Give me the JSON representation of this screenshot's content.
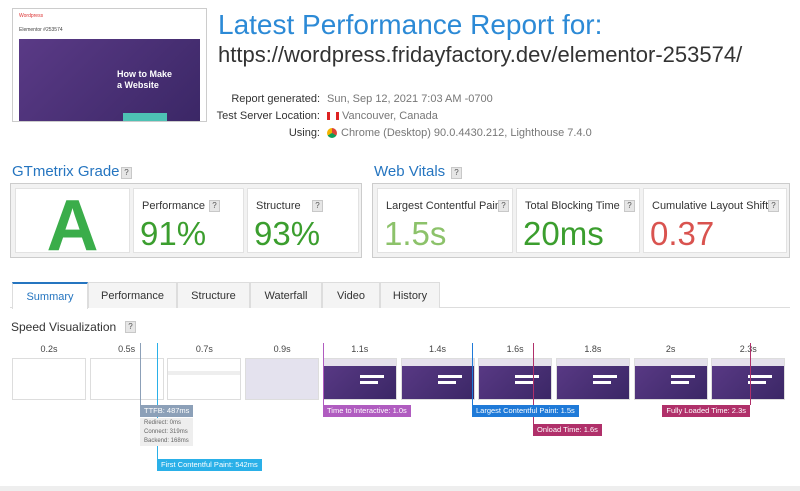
{
  "thumbnail": {
    "site": "Wordpress",
    "nav": "Elementor #253574",
    "hero": "How to Make a Website"
  },
  "header": {
    "title": "Latest Performance Report for:",
    "url": "https://wordpress.fridayfactory.dev/elementor-253574/"
  },
  "details": [
    {
      "label": "Report generated:",
      "value": "Sun, Sep 12, 2021 7:03 AM -0700"
    },
    {
      "label": "Test Server Location:",
      "value": "Vancouver, Canada"
    },
    {
      "label": "Using:",
      "value": "Chrome (Desktop) 90.0.4430.212, Lighthouse 7.4.0"
    }
  ],
  "help": "?",
  "grade": {
    "title": "GTmetrix Grade",
    "letter": "A",
    "metrics": [
      {
        "label": "Performance",
        "value": "91%"
      },
      {
        "label": "Structure",
        "value": "93%"
      }
    ]
  },
  "vitals": {
    "title": "Web Vitals",
    "metrics": [
      {
        "label": "Largest Contentful Paint",
        "value": "1.5s"
      },
      {
        "label": "Total Blocking Time",
        "value": "20ms"
      },
      {
        "label": "Cumulative Layout Shift",
        "value": "0.37"
      }
    ]
  },
  "tabs": [
    "Summary",
    "Performance",
    "Structure",
    "Waterfall",
    "Video",
    "History"
  ],
  "speed": {
    "title": "Speed Visualization",
    "frames": [
      "0.2s",
      "0.5s",
      "0.7s",
      "0.9s",
      "1.1s",
      "1.4s",
      "1.6s",
      "1.8s",
      "2s",
      "2.3s"
    ],
    "markers": {
      "ttfb": "TTFB: 487ms",
      "ttfb_details": [
        "Redirect: 0ms",
        "Connect: 319ms",
        "Backend: 168ms"
      ],
      "fcp": "First Contentful Paint: 542ms",
      "tti": "Time to Interactive: 1.0s",
      "lcp": "Largest Contentful Paint: 1.5s",
      "onload": "Onload Time: 1.6s",
      "fully": "Fully Loaded Time: 2.3s"
    }
  }
}
